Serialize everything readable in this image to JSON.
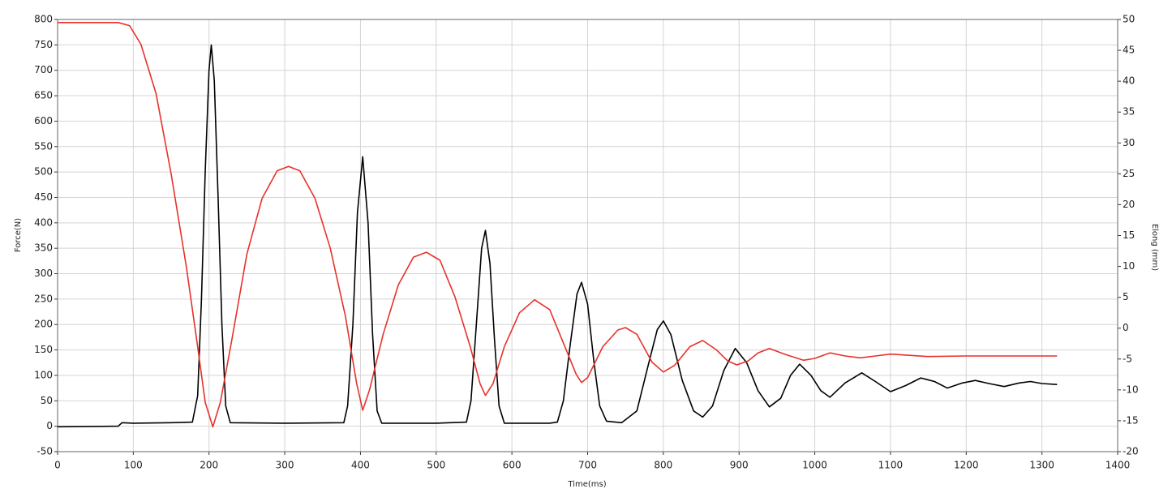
{
  "chart_data": {
    "type": "line",
    "xlabel": "Time(ms)",
    "ylabel": "Force(N)",
    "y2label": "Elong (mm)",
    "xlim": [
      0,
      1400
    ],
    "xticks": [
      0,
      100,
      200,
      300,
      400,
      500,
      600,
      700,
      800,
      900,
      1000,
      1100,
      1200,
      1300,
      1400
    ],
    "ylim": [
      -50,
      800
    ],
    "yticks": [
      -50,
      0,
      50,
      100,
      150,
      200,
      250,
      300,
      350,
      400,
      450,
      500,
      550,
      600,
      650,
      700,
      750,
      800
    ],
    "y2lim": [
      -20,
      50
    ],
    "y2ticks": [
      -20,
      -15,
      -10,
      -5,
      0,
      5,
      10,
      15,
      20,
      25,
      30,
      35,
      40,
      45,
      50
    ],
    "grid": true,
    "series": [
      {
        "name": "Force",
        "color": "#000000",
        "x": [
          0,
          80,
          85,
          100,
          150,
          178,
          185,
          190,
          195,
          200,
          203,
          207,
          212,
          217,
          222,
          228,
          300,
          378,
          383,
          390,
          396,
          403,
          410,
          416,
          422,
          428,
          500,
          540,
          546,
          553,
          560,
          565,
          571,
          577,
          583,
          590,
          650,
          660,
          668,
          677,
          686,
          692,
          700,
          708,
          716,
          725,
          745,
          765,
          780,
          792,
          800,
          810,
          825,
          840,
          852,
          865,
          880,
          895,
          910,
          925,
          940,
          955,
          968,
          980,
          995,
          1008,
          1020,
          1040,
          1062,
          1080,
          1100,
          1120,
          1140,
          1158,
          1175,
          1195,
          1212,
          1230,
          1250,
          1270,
          1285,
          1300,
          1320
        ],
        "values": [
          -1,
          0,
          7,
          6,
          7,
          8,
          60,
          250,
          500,
          700,
          750,
          680,
          450,
          200,
          40,
          7,
          6,
          7,
          40,
          200,
          420,
          530,
          400,
          180,
          30,
          6,
          6,
          8,
          50,
          200,
          350,
          385,
          320,
          170,
          40,
          6,
          6,
          8,
          50,
          160,
          260,
          283,
          240,
          130,
          40,
          10,
          7,
          30,
          120,
          190,
          207,
          180,
          90,
          30,
          18,
          40,
          110,
          153,
          125,
          70,
          38,
          55,
          100,
          122,
          100,
          70,
          57,
          85,
          105,
          88,
          68,
          80,
          95,
          88,
          75,
          85,
          90,
          84,
          78,
          85,
          88,
          84,
          82
        ]
      },
      {
        "name": "Elong",
        "color": "#e8312a",
        "axis": "y2",
        "x": [
          0,
          80,
          95,
          110,
          130,
          150,
          170,
          185,
          195,
          205,
          215,
          230,
          250,
          270,
          290,
          305,
          320,
          340,
          360,
          380,
          395,
          403,
          412,
          430,
          450,
          470,
          487,
          505,
          525,
          545,
          558,
          565,
          575,
          590,
          610,
          630,
          650,
          670,
          685,
          692,
          700,
          720,
          740,
          750,
          765,
          785,
          800,
          815,
          835,
          852,
          870,
          885,
          897,
          912,
          925,
          940,
          960,
          985,
          1000,
          1020,
          1040,
          1060,
          1080,
          1100,
          1150,
          1200,
          1250,
          1320
        ],
        "values": [
          49.5,
          49.5,
          49,
          46,
          38,
          25,
          10,
          -3,
          -12,
          -16,
          -12,
          -2,
          12,
          21,
          25.5,
          26.2,
          25.5,
          21,
          13,
          2,
          -9,
          -13.3,
          -10,
          -1,
          7,
          11.5,
          12.3,
          11,
          5,
          -3,
          -9,
          -10.9,
          -9,
          -3,
          2.5,
          4.6,
          3,
          -3,
          -7.5,
          -8.8,
          -8,
          -3,
          -0.3,
          0.1,
          -1,
          -5.5,
          -7.1,
          -6,
          -3,
          -2,
          -3.5,
          -5.3,
          -5.95,
          -5.3,
          -4,
          -3.3,
          -4.2,
          -5.2,
          -4.9,
          -4,
          -4.5,
          -4.8,
          -4.5,
          -4.2,
          -4.6,
          -4.5,
          -4.5,
          -4.5
        ]
      }
    ]
  }
}
